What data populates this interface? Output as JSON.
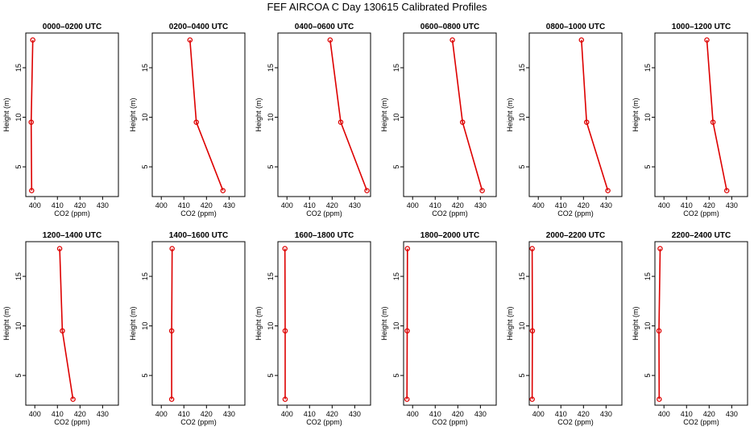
{
  "title": "FEF AIRCOA C  Day 130615  Calibrated Profiles",
  "colors": {
    "series": "#dd0000",
    "axis": "#000000"
  },
  "chart_data": [
    {
      "type": "line",
      "title": "0000–0200 UTC",
      "xlabel": "CO2 (ppm)",
      "ylabel": "Height (m)",
      "xlim": [
        396,
        437
      ],
      "ylim": [
        2,
        18.5
      ],
      "xticks": [
        400,
        410,
        420,
        430
      ],
      "yticks": [
        5,
        10,
        15
      ],
      "series": [
        {
          "name": "CO2 profile",
          "x": [
            398.6,
            398.4,
            399.1
          ],
          "y": [
            2.6,
            9.5,
            17.8
          ]
        }
      ]
    },
    {
      "type": "line",
      "title": "0200–0400 UTC",
      "xlabel": "CO2 (ppm)",
      "ylabel": "Height (m)",
      "xlim": [
        396,
        437
      ],
      "ylim": [
        2,
        18.5
      ],
      "xticks": [
        400,
        410,
        420,
        430
      ],
      "yticks": [
        5,
        10,
        15
      ],
      "series": [
        {
          "name": "CO2 profile",
          "x": [
            427.3,
            415.5,
            412.7
          ],
          "y": [
            2.6,
            9.5,
            17.8
          ]
        }
      ]
    },
    {
      "type": "line",
      "title": "0400–0600 UTC",
      "xlabel": "CO2 (ppm)",
      "ylabel": "Height (m)",
      "xlim": [
        396,
        437
      ],
      "ylim": [
        2,
        18.5
      ],
      "xticks": [
        400,
        410,
        420,
        430
      ],
      "yticks": [
        5,
        10,
        15
      ],
      "series": [
        {
          "name": "CO2 profile",
          "x": [
            435.4,
            423.8,
            419.1
          ],
          "y": [
            2.6,
            9.5,
            17.8
          ]
        }
      ]
    },
    {
      "type": "line",
      "title": "0600–0800 UTC",
      "xlabel": "CO2 (ppm)",
      "ylabel": "Height (m)",
      "xlim": [
        396,
        437
      ],
      "ylim": [
        2,
        18.5
      ],
      "xticks": [
        400,
        410,
        420,
        430
      ],
      "yticks": [
        5,
        10,
        15
      ],
      "series": [
        {
          "name": "CO2 profile",
          "x": [
            430.8,
            422.1,
            417.6
          ],
          "y": [
            2.6,
            9.5,
            17.8
          ]
        }
      ]
    },
    {
      "type": "line",
      "title": "0800–1000 UTC",
      "xlabel": "CO2 (ppm)",
      "ylabel": "Height (m)",
      "xlim": [
        396,
        437
      ],
      "ylim": [
        2,
        18.5
      ],
      "xticks": [
        400,
        410,
        420,
        430
      ],
      "yticks": [
        5,
        10,
        15
      ],
      "series": [
        {
          "name": "CO2 profile",
          "x": [
            430.8,
            421.4,
            419.1
          ],
          "y": [
            2.6,
            9.5,
            17.8
          ]
        }
      ]
    },
    {
      "type": "line",
      "title": "1000–1200 UTC",
      "xlabel": "CO2 (ppm)",
      "ylabel": "Height (m)",
      "xlim": [
        396,
        437
      ],
      "ylim": [
        2,
        18.5
      ],
      "xticks": [
        400,
        410,
        420,
        430
      ],
      "yticks": [
        5,
        10,
        15
      ],
      "series": [
        {
          "name": "CO2 profile",
          "x": [
            427.8,
            421.7,
            419.0
          ],
          "y": [
            2.6,
            9.5,
            17.8
          ]
        }
      ]
    },
    {
      "type": "line",
      "title": "1200–1400 UTC",
      "xlabel": "CO2 (ppm)",
      "ylabel": "Height (m)",
      "xlim": [
        396,
        437
      ],
      "ylim": [
        2,
        18.5
      ],
      "xticks": [
        400,
        410,
        420,
        430
      ],
      "yticks": [
        5,
        10,
        15
      ],
      "series": [
        {
          "name": "CO2 profile",
          "x": [
            416.9,
            412.2,
            411.0
          ],
          "y": [
            2.6,
            9.5,
            17.8
          ]
        }
      ]
    },
    {
      "type": "line",
      "title": "1400–1600 UTC",
      "xlabel": "CO2 (ppm)",
      "ylabel": "Height (m)",
      "xlim": [
        396,
        437
      ],
      "ylim": [
        2,
        18.5
      ],
      "xticks": [
        400,
        410,
        420,
        430
      ],
      "yticks": [
        5,
        10,
        15
      ],
      "series": [
        {
          "name": "CO2 profile",
          "x": [
            404.6,
            404.6,
            404.8
          ],
          "y": [
            2.6,
            9.5,
            17.8
          ]
        }
      ]
    },
    {
      "type": "line",
      "title": "1600–1800 UTC",
      "xlabel": "CO2 (ppm)",
      "ylabel": "Height (m)",
      "xlim": [
        396,
        437
      ],
      "ylim": [
        2,
        18.5
      ],
      "xticks": [
        400,
        410,
        420,
        430
      ],
      "yticks": [
        5,
        10,
        15
      ],
      "series": [
        {
          "name": "CO2 profile",
          "x": [
            399.2,
            399.2,
            399.1
          ],
          "y": [
            2.6,
            9.5,
            17.8
          ]
        }
      ]
    },
    {
      "type": "line",
      "title": "1800–2000 UTC",
      "xlabel": "CO2 (ppm)",
      "ylabel": "Height (m)",
      "xlim": [
        396,
        437
      ],
      "ylim": [
        2,
        18.5
      ],
      "xticks": [
        400,
        410,
        420,
        430
      ],
      "yticks": [
        5,
        10,
        15
      ],
      "series": [
        {
          "name": "CO2 profile",
          "x": [
            397.5,
            397.6,
            397.7
          ],
          "y": [
            2.6,
            9.5,
            17.8
          ]
        }
      ]
    },
    {
      "type": "line",
      "title": "2000–2200 UTC",
      "xlabel": "CO2 (ppm)",
      "ylabel": "Height (m)",
      "xlim": [
        396,
        437
      ],
      "ylim": [
        2,
        18.5
      ],
      "xticks": [
        400,
        410,
        420,
        430
      ],
      "yticks": [
        5,
        10,
        15
      ],
      "series": [
        {
          "name": "CO2 profile",
          "x": [
            397.3,
            397.4,
            397.3
          ],
          "y": [
            2.6,
            9.5,
            17.8
          ]
        }
      ]
    },
    {
      "type": "line",
      "title": "2200–2400 UTC",
      "xlabel": "CO2 (ppm)",
      "ylabel": "Height (m)",
      "xlim": [
        396,
        437
      ],
      "ylim": [
        2,
        18.5
      ],
      "xticks": [
        400,
        410,
        420,
        430
      ],
      "yticks": [
        5,
        10,
        15
      ],
      "series": [
        {
          "name": "CO2 profile",
          "x": [
            397.9,
            397.8,
            398.3
          ],
          "y": [
            2.6,
            9.5,
            17.8
          ]
        }
      ]
    }
  ]
}
